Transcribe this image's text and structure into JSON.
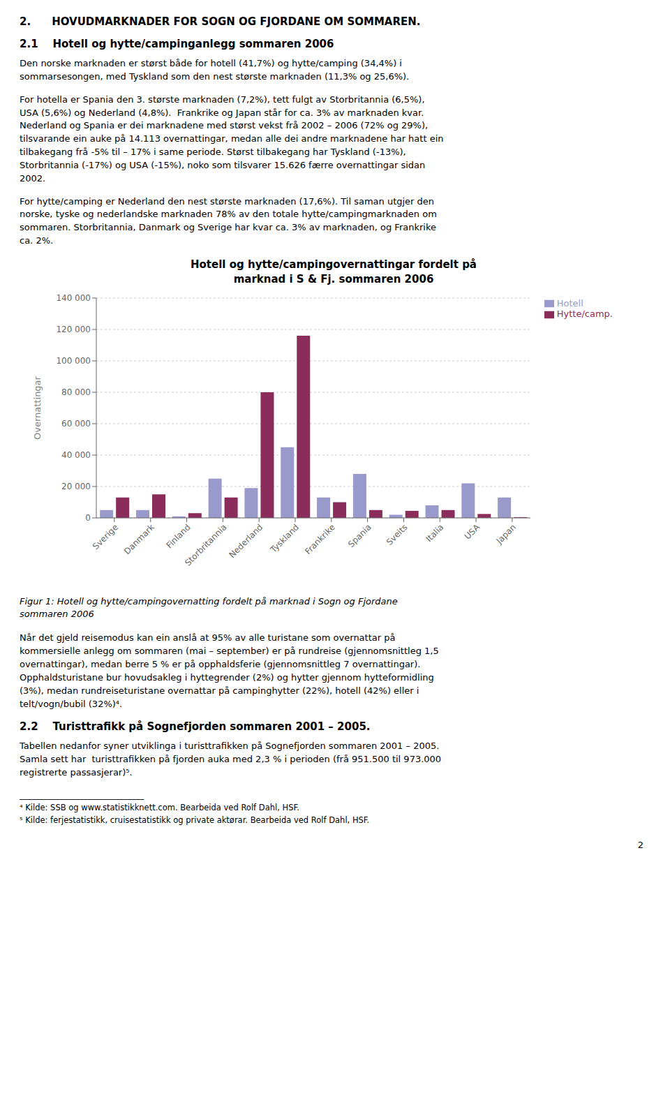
{
  "chart_data": {
    "type": "bar",
    "title": "Hotell og hytte/campingovernattingar fordelt på\nmarknad i S & Fj. sommaren 2006",
    "ylabel": "Overnattingar",
    "categories": [
      "Sverige",
      "Danmark",
      "Finland",
      "Storbritannia",
      "Nederland",
      "Tyskland",
      "Frankrike",
      "Spania",
      "Sveits",
      "Italia",
      "USA",
      "Japan"
    ],
    "series": [
      {
        "name": "Hotell",
        "color": "#9999CC",
        "values": [
          5000,
          5000,
          1000,
          25000,
          19000,
          45000,
          13000,
          28000,
          2000,
          8000,
          22000,
          13000
        ]
      },
      {
        "name": "Hytte/camp.",
        "color": "#8B2D5B",
        "values": [
          13000,
          15000,
          3000,
          13000,
          80000,
          116000,
          10000,
          5000,
          4500,
          5000,
          2500,
          500
        ]
      }
    ],
    "ylim": [
      0,
      140000
    ],
    "yticks": [
      0,
      {
        "value": 20000,
        "label": "20 000"
      },
      {
        "value": 40000,
        "label": "40 000"
      },
      {
        "value": 60000,
        "label": "60 000"
      },
      {
        "value": 80000,
        "label": "80 000"
      },
      {
        "value": 100000,
        "label": "100 000"
      },
      {
        "value": 120000,
        "label": "120 000"
      },
      {
        "value": 140000,
        "label": "140 000"
      }
    ],
    "grid": true,
    "legend": "right",
    "annotations": [
      "2.  HOVUDMARKNADER FOR SOGN OG FJORDANE OM SOMMAREN.",
      "2.1    Hotell og hytte/campinganlegg sommaren 2006",
      "Den norske marknaden er størst både for hotell (41,7%) og hytte/camping (34,4%) i\nsommarsesongen, med Tyskland som den nest største marknaden (11,3% og 25,6%).",
      "For hotella er Spania den 3. største marknaden (7,2%), tett fulgt av Storbritannia (6,5%),\nUSA (5,6%) og Nederland (4,8%).  Frankrike og Japan står for ca. 3% av marknaden kvar.\nNederland og Spania er dei marknadene med størst vekst frå 2002 – 2006 (72% og 29%),\ntilsvarande ein auke på 14.113 overnattingar, medan alle dei andre marknadene har hatt ein\ntilbakegang frå -5% til – 17% i same periode. Størst tilbakegang har Tyskland (-13%),\nStorbritannia (-17%) og USA (-15%), noko som tilsvarer 15.626 færre overnattingar sidan\n2002.",
      "For hytte/camping er Nederland den nest største marknaden (17,6%). Til saman utgjer den\nnorske, tyske og nederlandske marknaden 78% av den totale hytte/campingmarknaden om\nsommaren. Storbritannia, Danmark og Sverige har kvar ca. 3% av marknaden, og Frankrike\nca. 2%.",
      "Figur 1: Hotell og hytte/campingovernatting fordelt på marknad i Sogn og Fjordane\nsommaren 2006",
      "Når det gjeld reisemodus kan ein anslå at 95% av alle turistane som overnattar på\nkommersielle anlegg om sommaren (mai – september) er på rundreise (gjennomsnittleg 1,5\novernattingar), medan berre 5 % er på opphaldsferie (gjennomsnittleg 7 overnattingar).\nOpphaldsturistane bur hovudsakleg i hyttegrender (2%) og hytter gjennom hytteformidling\n(3%), medan rundreiseturistane overnattar på campinghytter (22%), hotell (42%) eller i\ntelt/vogn/bubil (32%)⁴.",
      "2.2    Turisttrafikk på Sognefjorden sommaren 2001 – 2005.",
      "Tabellen nedanfor syner utviklinga i turisttrafikken på Sognefjorden sommaren 2001 – 2005.\nSamla sett har  turisttrafikken på fjorden auka med 2,3 % i perioden (frå 951.500 til 973.000\nregistrerte passasjerar)⁵.",
      "_______________________________",
      "⁴ Kilde: SSB og www.statistikknett.com. Bearbeida ved Rolf Dahl, HSF.",
      "⁵ Kilde: ferjestatistikk, cruisestatistikk og private aktørar. Bearbeida ved Rolf Dahl, HSF.",
      "2"
    ]
  }
}
